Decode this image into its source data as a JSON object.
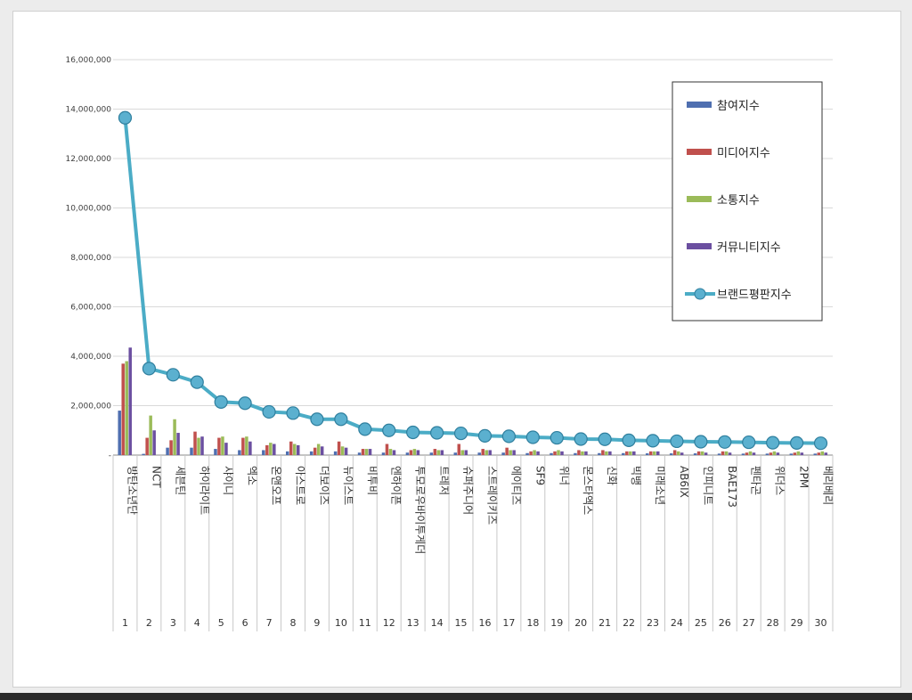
{
  "chart_data": {
    "type": "bar",
    "title": "",
    "xlabel": "",
    "ylabel": "",
    "ylim": [
      0,
      16000000
    ],
    "yticks": [
      0,
      2000000,
      4000000,
      6000000,
      8000000,
      10000000,
      12000000,
      14000000,
      16000000
    ],
    "ytick_labels": [
      "-",
      "2,000,000",
      "4,000,000",
      "6,000,000",
      "8,000,000",
      "10,000,000",
      "12,000,000",
      "14,000,000",
      "16,000,000"
    ],
    "grid": true,
    "legend_position": "top-right",
    "ranks": [
      "1",
      "2",
      "3",
      "4",
      "5",
      "6",
      "7",
      "8",
      "9",
      "10",
      "11",
      "12",
      "13",
      "14",
      "15",
      "16",
      "17",
      "18",
      "19",
      "20",
      "21",
      "22",
      "23",
      "24",
      "25",
      "26",
      "27",
      "28",
      "29",
      "30"
    ],
    "categories": [
      "방탄소년단",
      "NCT",
      "세븐틴",
      "하이라이트",
      "샤이니",
      "엑소",
      "온앤오프",
      "아스트로",
      "더보이즈",
      "뉴이스트",
      "비투비",
      "엔하이픈",
      "투모로우바이투게더",
      "트레저",
      "슈퍼주니어",
      "스트레이키즈",
      "에이티즈",
      "SF9",
      "위너",
      "몬스타엑스",
      "신화",
      "빅뱅",
      "미래소년",
      "AB6IX",
      "인피니트",
      "BAE173",
      "펜타곤",
      "위더스",
      "2PM",
      "베리베리"
    ],
    "series": [
      {
        "name": "참여지수",
        "kind": "bar",
        "color": "#4f6fb0",
        "values": [
          1800000,
          50000,
          300000,
          300000,
          250000,
          200000,
          200000,
          150000,
          150000,
          150000,
          100000,
          100000,
          100000,
          100000,
          100000,
          100000,
          100000,
          80000,
          80000,
          80000,
          80000,
          80000,
          70000,
          70000,
          70000,
          60000,
          60000,
          60000,
          60000,
          60000
        ]
      },
      {
        "name": "미디어지수",
        "kind": "bar",
        "color": "#c0504d",
        "values": [
          3700000,
          700000,
          600000,
          950000,
          700000,
          700000,
          400000,
          550000,
          300000,
          550000,
          250000,
          450000,
          200000,
          250000,
          450000,
          250000,
          300000,
          150000,
          150000,
          200000,
          200000,
          150000,
          150000,
          200000,
          150000,
          150000,
          100000,
          100000,
          100000,
          100000
        ]
      },
      {
        "name": "소통지수",
        "kind": "bar",
        "color": "#9bbb59",
        "values": [
          3800000,
          1600000,
          1450000,
          700000,
          750000,
          750000,
          500000,
          450000,
          450000,
          350000,
          250000,
          250000,
          250000,
          200000,
          200000,
          200000,
          200000,
          200000,
          200000,
          150000,
          150000,
          150000,
          150000,
          150000,
          150000,
          150000,
          150000,
          150000,
          150000,
          150000
        ]
      },
      {
        "name": "커뮤니티지수",
        "kind": "bar",
        "color": "#6b4fa0",
        "values": [
          4350000,
          1000000,
          900000,
          750000,
          500000,
          550000,
          450000,
          400000,
          350000,
          300000,
          250000,
          200000,
          200000,
          200000,
          200000,
          200000,
          200000,
          150000,
          150000,
          150000,
          150000,
          150000,
          150000,
          100000,
          100000,
          100000,
          100000,
          100000,
          100000,
          100000
        ]
      },
      {
        "name": "브랜드평판지수",
        "kind": "line",
        "color": "#4bacc6",
        "values": [
          13650000,
          3500000,
          3250000,
          2950000,
          2150000,
          2100000,
          1750000,
          1700000,
          1450000,
          1450000,
          1050000,
          1000000,
          920000,
          900000,
          880000,
          780000,
          760000,
          720000,
          700000,
          650000,
          640000,
          600000,
          580000,
          560000,
          540000,
          530000,
          520000,
          500000,
          490000,
          480000
        ]
      }
    ]
  },
  "colors": {
    "grid": "#d9d9d9",
    "axis": "#888888",
    "text": "#404040",
    "line_marker_fill": "#5bb0cf",
    "line_marker_stroke": "#2f7f9e"
  }
}
